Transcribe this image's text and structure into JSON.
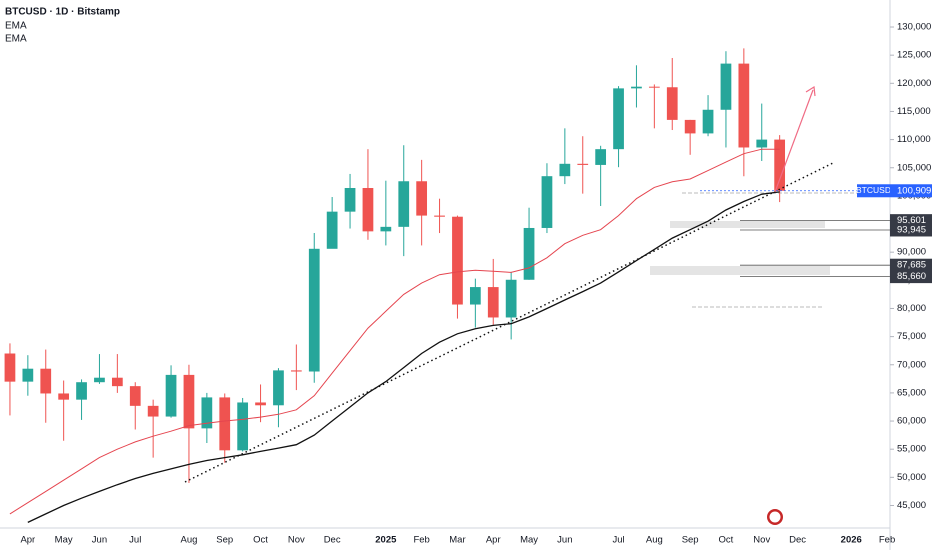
{
  "chart_data": {
    "type": "candlestick",
    "title": "BTCUSD · 1D · Bitstamp",
    "categories": [
      null,
      "Apr",
      null,
      "May",
      null,
      "Jun",
      null,
      "Jul",
      null,
      null,
      "Aug",
      null,
      "Sep",
      null,
      "Oct",
      null,
      "Nov",
      null,
      "Dec",
      null,
      null,
      "2025",
      null,
      "Feb",
      null,
      "Mar",
      null,
      "Apr",
      null,
      "May",
      null,
      "Jun",
      null,
      null,
      "Jul",
      null,
      "Aug",
      null,
      "Sep",
      null,
      "Oct",
      null,
      "Nov",
      null,
      "Dec",
      null,
      null,
      "2026",
      null,
      "Feb"
    ],
    "series": [
      {
        "name": "BTCUSD",
        "up_color": "#26a69a",
        "down_color": "#ef5350",
        "open": [
          72000,
          67000,
          69300,
          64900,
          63800,
          66900,
          67700,
          66200,
          62700,
          60800,
          68200,
          58700,
          64200,
          54800,
          63300,
          62800,
          69000,
          68800,
          90600,
          97200,
          101400,
          93700,
          94500,
          102600,
          96500,
          96300,
          80700,
          83800,
          78400,
          85100,
          94300,
          103500,
          105700,
          105500,
          108300,
          119100,
          119400,
          119300,
          113500,
          111100,
          115300,
          123500,
          108600,
          110000,
          null,
          null,
          null,
          null,
          null,
          null
        ],
        "high": [
          73800,
          71700,
          72700,
          67200,
          67400,
          71900,
          71900,
          66900,
          63800,
          69900,
          70000,
          65000,
          64900,
          64100,
          66500,
          69400,
          73600,
          93400,
          99800,
          103900,
          108300,
          102700,
          109000,
          106400,
          99500,
          96500,
          85300,
          88800,
          86500,
          97900,
          105800,
          112000,
          110600,
          108900,
          119500,
          123200,
          119800,
          124500,
          113500,
          117900,
          125700,
          126200,
          116400,
          110800,
          null,
          null,
          null,
          null,
          null,
          null
        ],
        "low": [
          61000,
          64500,
          59700,
          56500,
          60200,
          66600,
          65000,
          58500,
          53500,
          60600,
          49000,
          56100,
          52600,
          54600,
          59800,
          58900,
          65500,
          66800,
          90700,
          94200,
          92200,
          91200,
          89300,
          91200,
          93400,
          78200,
          76600,
          77100,
          74500,
          85100,
          93400,
          102100,
          100400,
          98200,
          105100,
          115700,
          112000,
          111700,
          107300,
          110600,
          108600,
          103500,
          106200,
          98900,
          null,
          null,
          null,
          null,
          null,
          null
        ],
        "close": [
          67000,
          69300,
          64900,
          63800,
          66900,
          67700,
          66200,
          62700,
          60800,
          68200,
          58700,
          64200,
          54800,
          63300,
          62800,
          69000,
          68800,
          90600,
          97200,
          101400,
          93700,
          94500,
          102600,
          96500,
          96300,
          80700,
          83800,
          78400,
          85100,
          94300,
          103500,
          105700,
          105500,
          108300,
          119100,
          119400,
          119300,
          113500,
          111100,
          115300,
          123500,
          108600,
          110000,
          100909,
          null,
          null,
          null,
          null,
          null,
          null
        ]
      }
    ],
    "ema": [
      {
        "name": "EMA",
        "color": "#e5454f",
        "values": [
          43500,
          45500,
          47500,
          49500,
          51500,
          53500,
          55000,
          56300,
          57300,
          58200,
          59200,
          59600,
          60000,
          60300,
          60700,
          61200,
          62000,
          64500,
          68500,
          72500,
          76500,
          79500,
          82500,
          84500,
          86000,
          86500,
          86800,
          86600,
          86400,
          87200,
          89000,
          91500,
          93000,
          94000,
          96500,
          99500,
          101500,
          102500,
          103000,
          104500,
          106000,
          107500,
          108300,
          108300,
          null,
          null,
          null,
          null,
          null,
          null
        ]
      },
      {
        "name": "EMA",
        "color": "#111111",
        "values": [
          null,
          42000,
          43500,
          45000,
          46300,
          47500,
          48700,
          49800,
          50700,
          51500,
          52300,
          53000,
          53500,
          54000,
          54600,
          55200,
          55800,
          57500,
          60000,
          62500,
          65000,
          67000,
          69500,
          72000,
          74000,
          75500,
          76400,
          77000,
          77300,
          78500,
          80000,
          81500,
          83000,
          84500,
          86500,
          88500,
          90500,
          92500,
          94000,
          95500,
          97500,
          99000,
          100300,
          100700,
          null,
          null,
          null,
          null,
          null,
          null
        ]
      }
    ],
    "ylim": [
      41000,
      134800
    ],
    "yticks": [
      {
        "value": 45000,
        "label": "45,000"
      },
      {
        "value": 50000,
        "label": "50,000"
      },
      {
        "value": 55000,
        "label": "55,000"
      },
      {
        "value": 60000,
        "label": "60,000"
      },
      {
        "value": 65000,
        "label": "65,000"
      },
      {
        "value": 70000,
        "label": "70,000"
      },
      {
        "value": 75000,
        "label": "75,000"
      },
      {
        "value": 80000,
        "label": "80,000"
      },
      {
        "value": 85000,
        "label": "85,000"
      },
      {
        "value": 90000,
        "label": "90,000"
      },
      {
        "value": 95000,
        "label": "95,000"
      },
      {
        "value": 100000,
        "label": "100,000"
      },
      {
        "value": 105000,
        "label": "105,000"
      },
      {
        "value": 110000,
        "label": "110,000"
      },
      {
        "value": 115000,
        "label": "115,000"
      },
      {
        "value": 120000,
        "label": "120,000"
      },
      {
        "value": 125000,
        "label": "125,000"
      },
      {
        "value": 130000,
        "label": "130,000"
      }
    ],
    "last_price": {
      "name": "BTCUSD",
      "value": 100909,
      "label": "100,909",
      "color": "#2962ff"
    },
    "levels": [
      {
        "value": 95601,
        "label": "95,601"
      },
      {
        "value": 93945,
        "label": "93,945"
      },
      {
        "value": 87685,
        "label": "87,685"
      },
      {
        "value": 85660,
        "label": "85,660"
      }
    ]
  }
}
